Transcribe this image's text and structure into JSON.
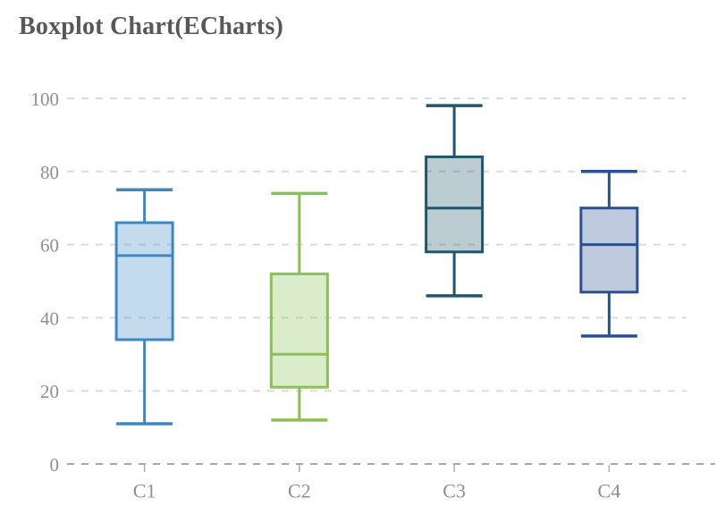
{
  "title": "Boxplot Chart(ECharts)",
  "chart_data": {
    "type": "boxplot",
    "title": "Boxplot Chart(ECharts)",
    "categories": [
      "C1",
      "C2",
      "C3",
      "C4"
    ],
    "series": [
      {
        "name": "C1",
        "min": 11,
        "q1": 34,
        "median": 57,
        "q3": 66,
        "max": 75,
        "color": "#3d87c2"
      },
      {
        "name": "C2",
        "min": 12,
        "q1": 21,
        "median": 30,
        "q3": 52,
        "max": 74,
        "color": "#89c152"
      },
      {
        "name": "C3",
        "min": 46,
        "q1": 58,
        "median": 70,
        "q3": 84,
        "max": 98,
        "color": "#1e566c"
      },
      {
        "name": "C4",
        "min": 35,
        "q1": 47,
        "median": 60,
        "q3": 70,
        "max": 80,
        "color": "#2a5191"
      }
    ],
    "xlabel": "",
    "ylabel": "",
    "ylim": [
      0,
      100
    ],
    "yticks": [
      0,
      20,
      40,
      60,
      80,
      100
    ],
    "grid": "horizontal-dashed",
    "legend": "none",
    "box_fill_opacity": 0.3
  },
  "colors": {
    "title_text": "#58585a",
    "axis_label": "#8f8f8f",
    "gridline": "#dcdcdc",
    "axis_line": "#ababab",
    "tick": "#aaaaaa",
    "background": "#ffffff"
  }
}
